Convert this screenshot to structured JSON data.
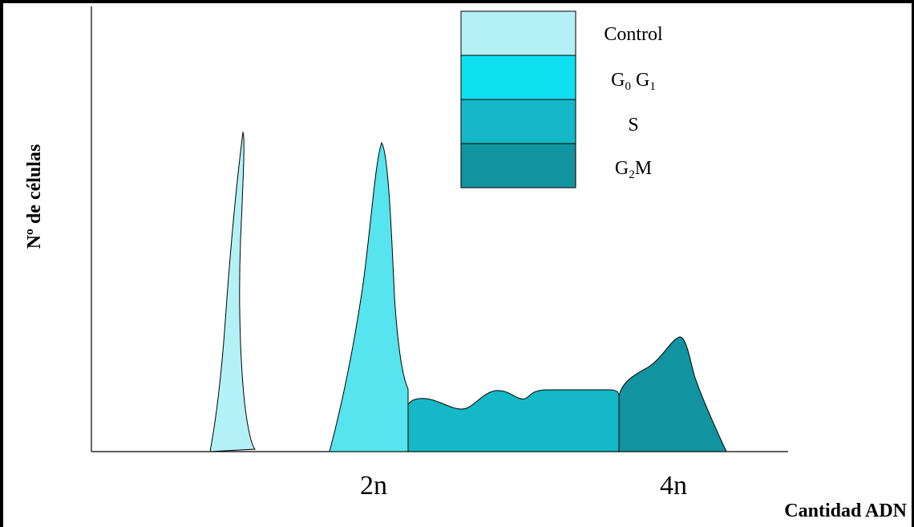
{
  "axes": {
    "y_label": "Nº de células",
    "x_label": "Cantidad ADN",
    "ticks": [
      "2n",
      "4n"
    ]
  },
  "legend": [
    {
      "key": "control",
      "text": "Control",
      "color": "#b3f1f6"
    },
    {
      "key": "g0g1",
      "text": "G",
      "sub1": "0",
      "text2": " G",
      "sub2": "1",
      "color": "#0fe0f1"
    },
    {
      "key": "s",
      "text": "S",
      "color": "#14b8c6"
    },
    {
      "key": "g2m",
      "text": "G",
      "sub1": "2",
      "text2": "M",
      "color": "#11949f"
    }
  ],
  "peaks": {
    "control_color": "#b3f1f6",
    "g0g1_color": "#56e4ee",
    "s_color": "#14b8c6",
    "g2m_color": "#11949f"
  }
}
